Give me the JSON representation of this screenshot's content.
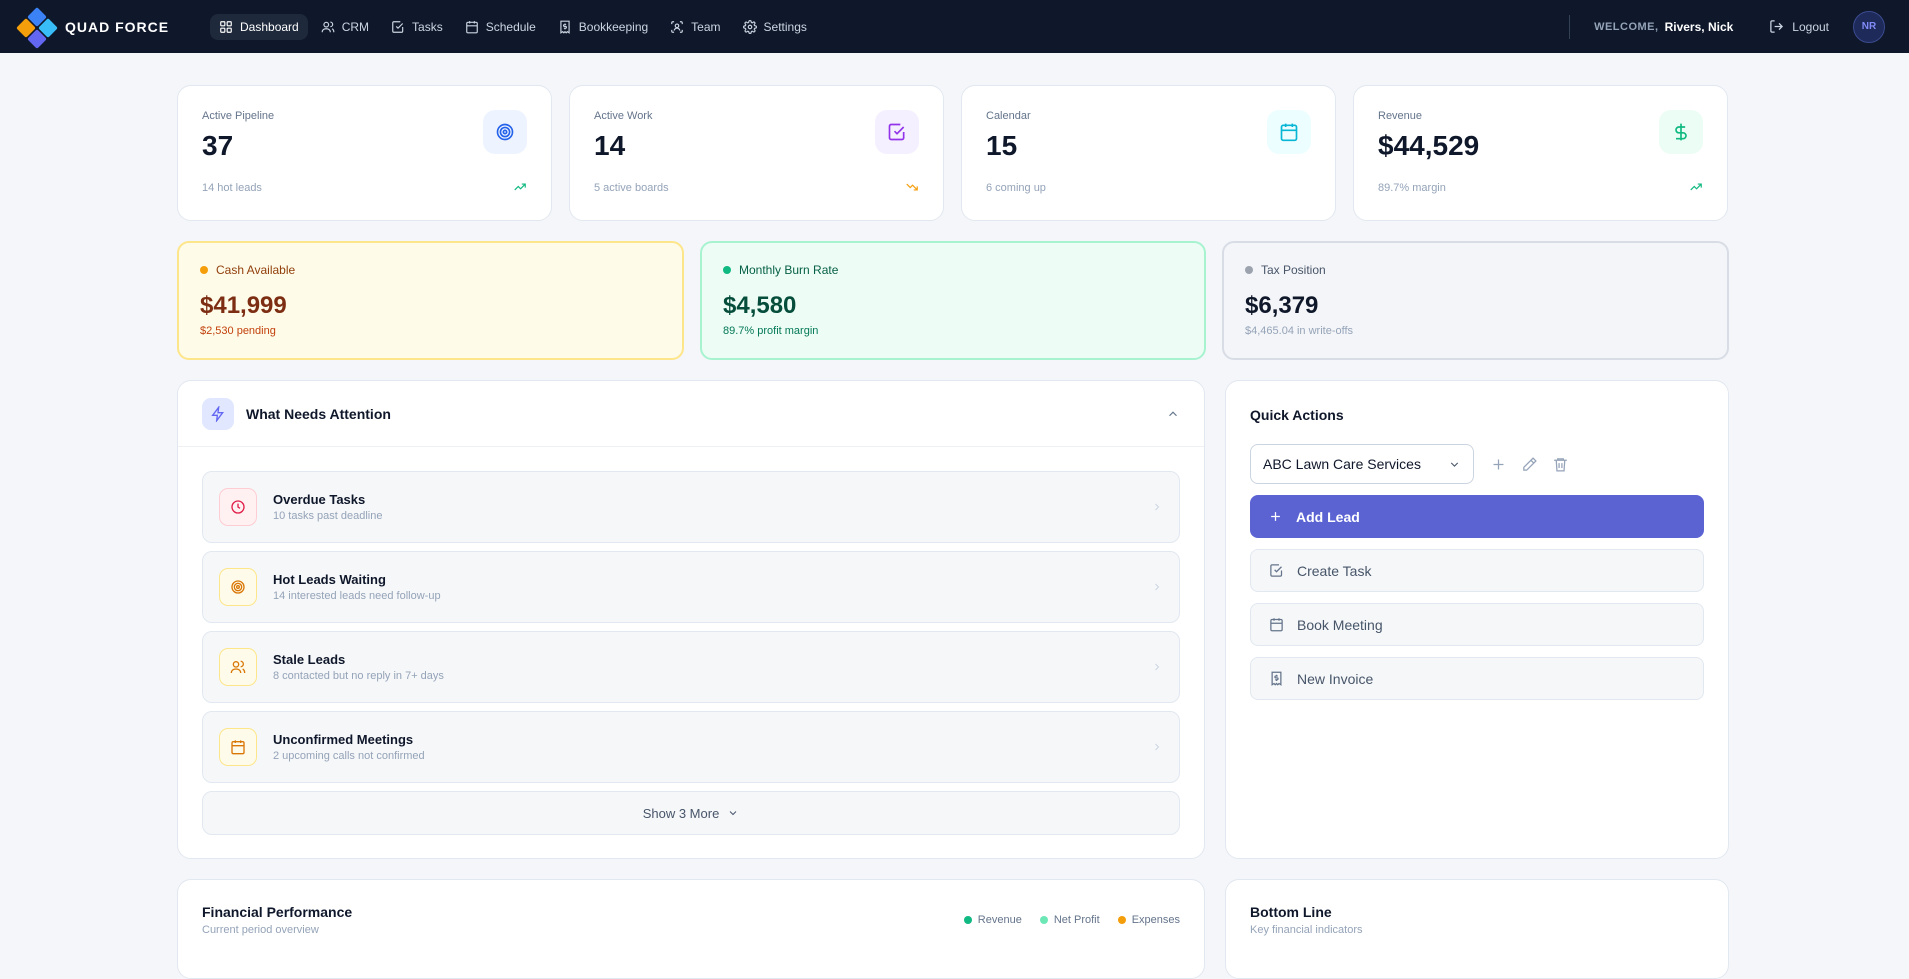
{
  "brand": {
    "name": "QUAD FORCE"
  },
  "nav": {
    "items": [
      {
        "label": "Dashboard",
        "icon": "grid-icon"
      },
      {
        "label": "CRM",
        "icon": "users-icon"
      },
      {
        "label": "Tasks",
        "icon": "check-square-icon"
      },
      {
        "label": "Schedule",
        "icon": "calendar-icon"
      },
      {
        "label": "Bookkeeping",
        "icon": "receipt-icon"
      },
      {
        "label": "Team",
        "icon": "team-icon"
      },
      {
        "label": "Settings",
        "icon": "gear-icon"
      }
    ],
    "active": "Dashboard"
  },
  "user": {
    "welcome": "WELCOME,",
    "name": "Rivers, Nick",
    "logout": "Logout",
    "initials": "NR"
  },
  "stats": [
    {
      "label": "Active Pipeline",
      "value": "37",
      "sub": "14 hot leads",
      "icon": "target-icon",
      "trend": "up"
    },
    {
      "label": "Active Work",
      "value": "14",
      "sub": "5 active boards",
      "icon": "check-square-icon",
      "trend": "down"
    },
    {
      "label": "Calendar",
      "value": "15",
      "sub": "6 coming up",
      "icon": "calendar-icon",
      "trend": "none"
    },
    {
      "label": "Revenue",
      "value": "$44,529",
      "sub": "89.7% margin",
      "icon": "dollar-icon",
      "trend": "up"
    }
  ],
  "money": [
    {
      "label": "Cash Available",
      "value": "$41,999",
      "sub": "$2,530 pending"
    },
    {
      "label": "Monthly Burn Rate",
      "value": "$4,580",
      "sub": "89.7% profit margin"
    },
    {
      "label": "Tax Position",
      "value": "$6,379",
      "sub": "$4,465.04 in write-offs"
    }
  ],
  "attention": {
    "title": "What Needs Attention",
    "items": [
      {
        "title": "Overdue Tasks",
        "sub": "10 tasks past deadline",
        "icon": "clock-icon"
      },
      {
        "title": "Hot Leads Waiting",
        "sub": "14 interested leads need follow-up",
        "icon": "target-icon"
      },
      {
        "title": "Stale Leads",
        "sub": "8 contacted but no reply in 7+ days",
        "icon": "users-icon"
      },
      {
        "title": "Unconfirmed Meetings",
        "sub": "2 upcoming calls not confirmed",
        "icon": "calendar-icon"
      }
    ],
    "show_more": "Show 3 More"
  },
  "quick_actions": {
    "title": "Quick Actions",
    "selected_client": "ABC Lawn Care Services",
    "buttons": [
      {
        "label": "Add Lead",
        "icon": "plus-icon"
      },
      {
        "label": "Create Task",
        "icon": "check-square-icon"
      },
      {
        "label": "Book Meeting",
        "icon": "calendar-icon"
      },
      {
        "label": "New Invoice",
        "icon": "receipt-icon"
      }
    ]
  },
  "financial": {
    "title": "Financial Performance",
    "subtitle": "Current period overview",
    "legend": [
      "Revenue",
      "Net Profit",
      "Expenses"
    ]
  },
  "bottom_line": {
    "title": "Bottom Line",
    "subtitle": "Key financial indicators"
  },
  "colors": {
    "nav_bg": "#0f172a",
    "accent": "#5b63d3",
    "revenue": "#10b981",
    "net_profit": "#6ee7b7",
    "expenses": "#f59e0b"
  }
}
